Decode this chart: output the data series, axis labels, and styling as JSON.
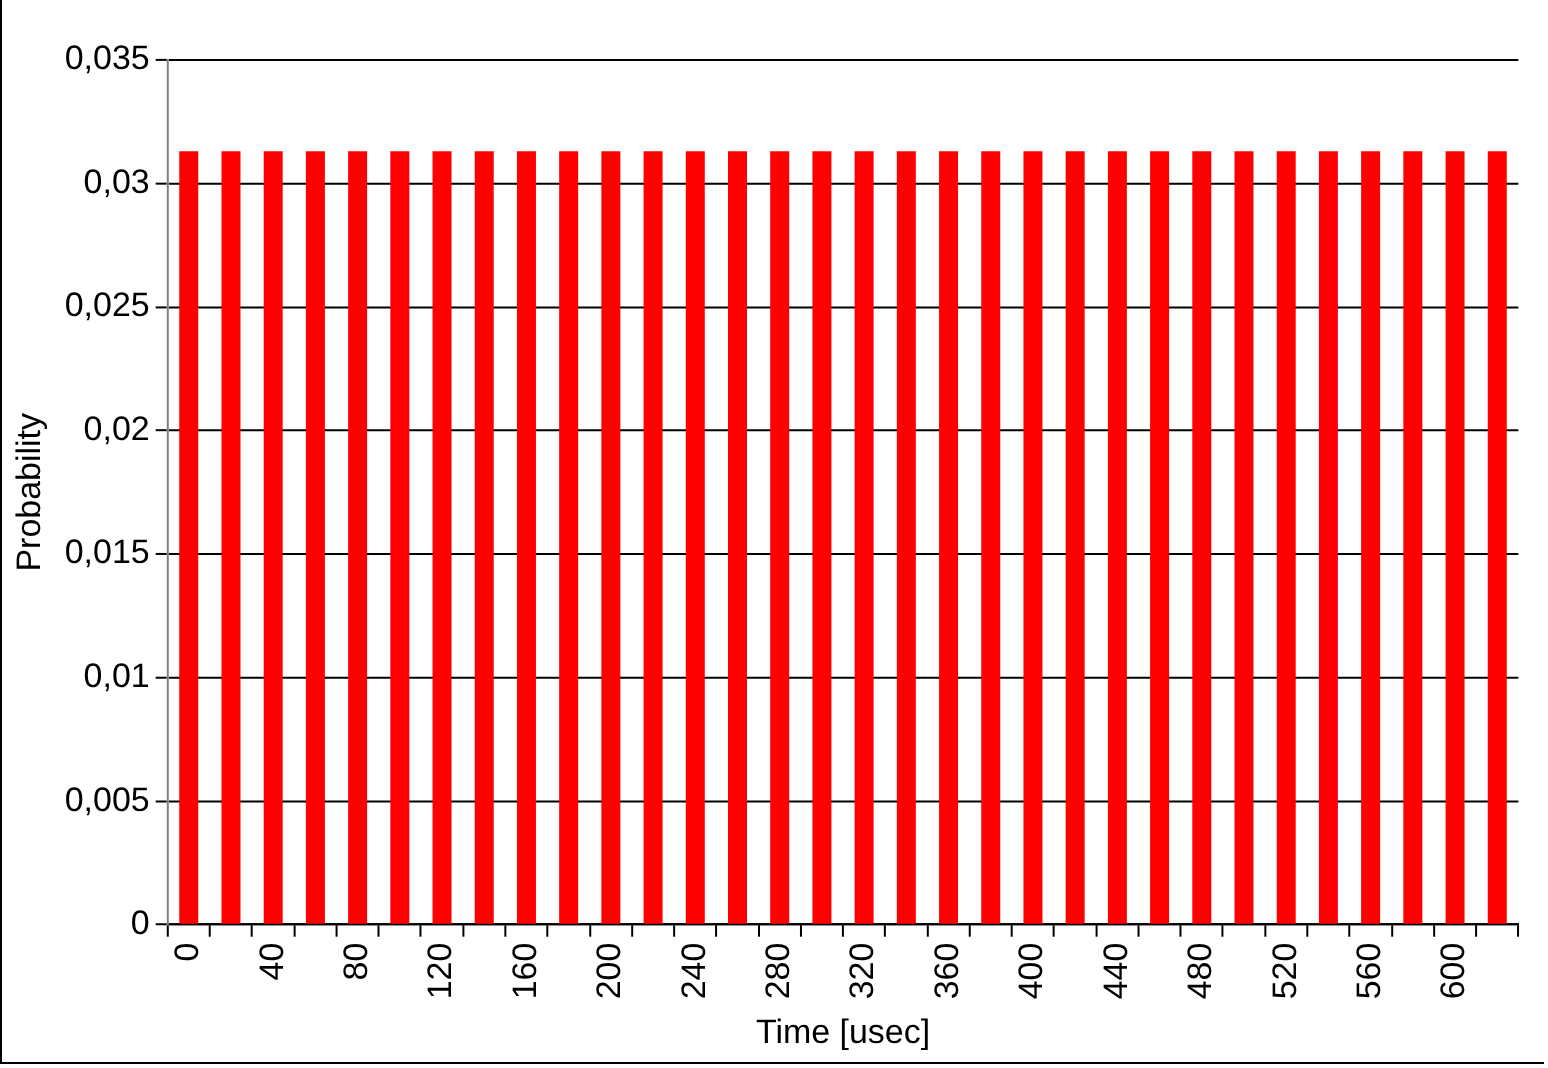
{
  "chart_data": {
    "type": "bar",
    "xlabel": "Time [usec]",
    "ylabel": "Probability",
    "categories": [
      "0",
      null,
      "40",
      null,
      "80",
      null,
      "120",
      null,
      "160",
      null,
      "200",
      null,
      "240",
      null,
      "280",
      null,
      "320",
      null,
      "360",
      null,
      "400",
      null,
      "440",
      null,
      "480",
      null,
      "520",
      null,
      "560",
      null,
      "600",
      null
    ],
    "values": [
      0.0313,
      0.0313,
      0.0313,
      0.0313,
      0.0313,
      0.0313,
      0.0313,
      0.0313,
      0.0313,
      0.0313,
      0.0313,
      0.0313,
      0.0313,
      0.0313,
      0.0313,
      0.0313,
      0.0313,
      0.0313,
      0.0313,
      0.0313,
      0.0313,
      0.0313,
      0.0313,
      0.0313,
      0.0313,
      0.0313,
      0.0313,
      0.0313,
      0.0313,
      0.0313,
      0.0313,
      0.0313
    ],
    "color": "#ff0000",
    "ylim": [
      0,
      0.035
    ],
    "yticks": [
      {
        "value": 0,
        "label": "0"
      },
      {
        "value": 0.005,
        "label": "0,005"
      },
      {
        "value": 0.01,
        "label": "0,01"
      },
      {
        "value": 0.015,
        "label": "0,015"
      },
      {
        "value": 0.02,
        "label": "0,02"
      },
      {
        "value": 0.025,
        "label": "0,025"
      },
      {
        "value": 0.03,
        "label": "0,03"
      },
      {
        "value": 0.035,
        "label": "0,035"
      }
    ],
    "grid": "y",
    "legend": false
  }
}
